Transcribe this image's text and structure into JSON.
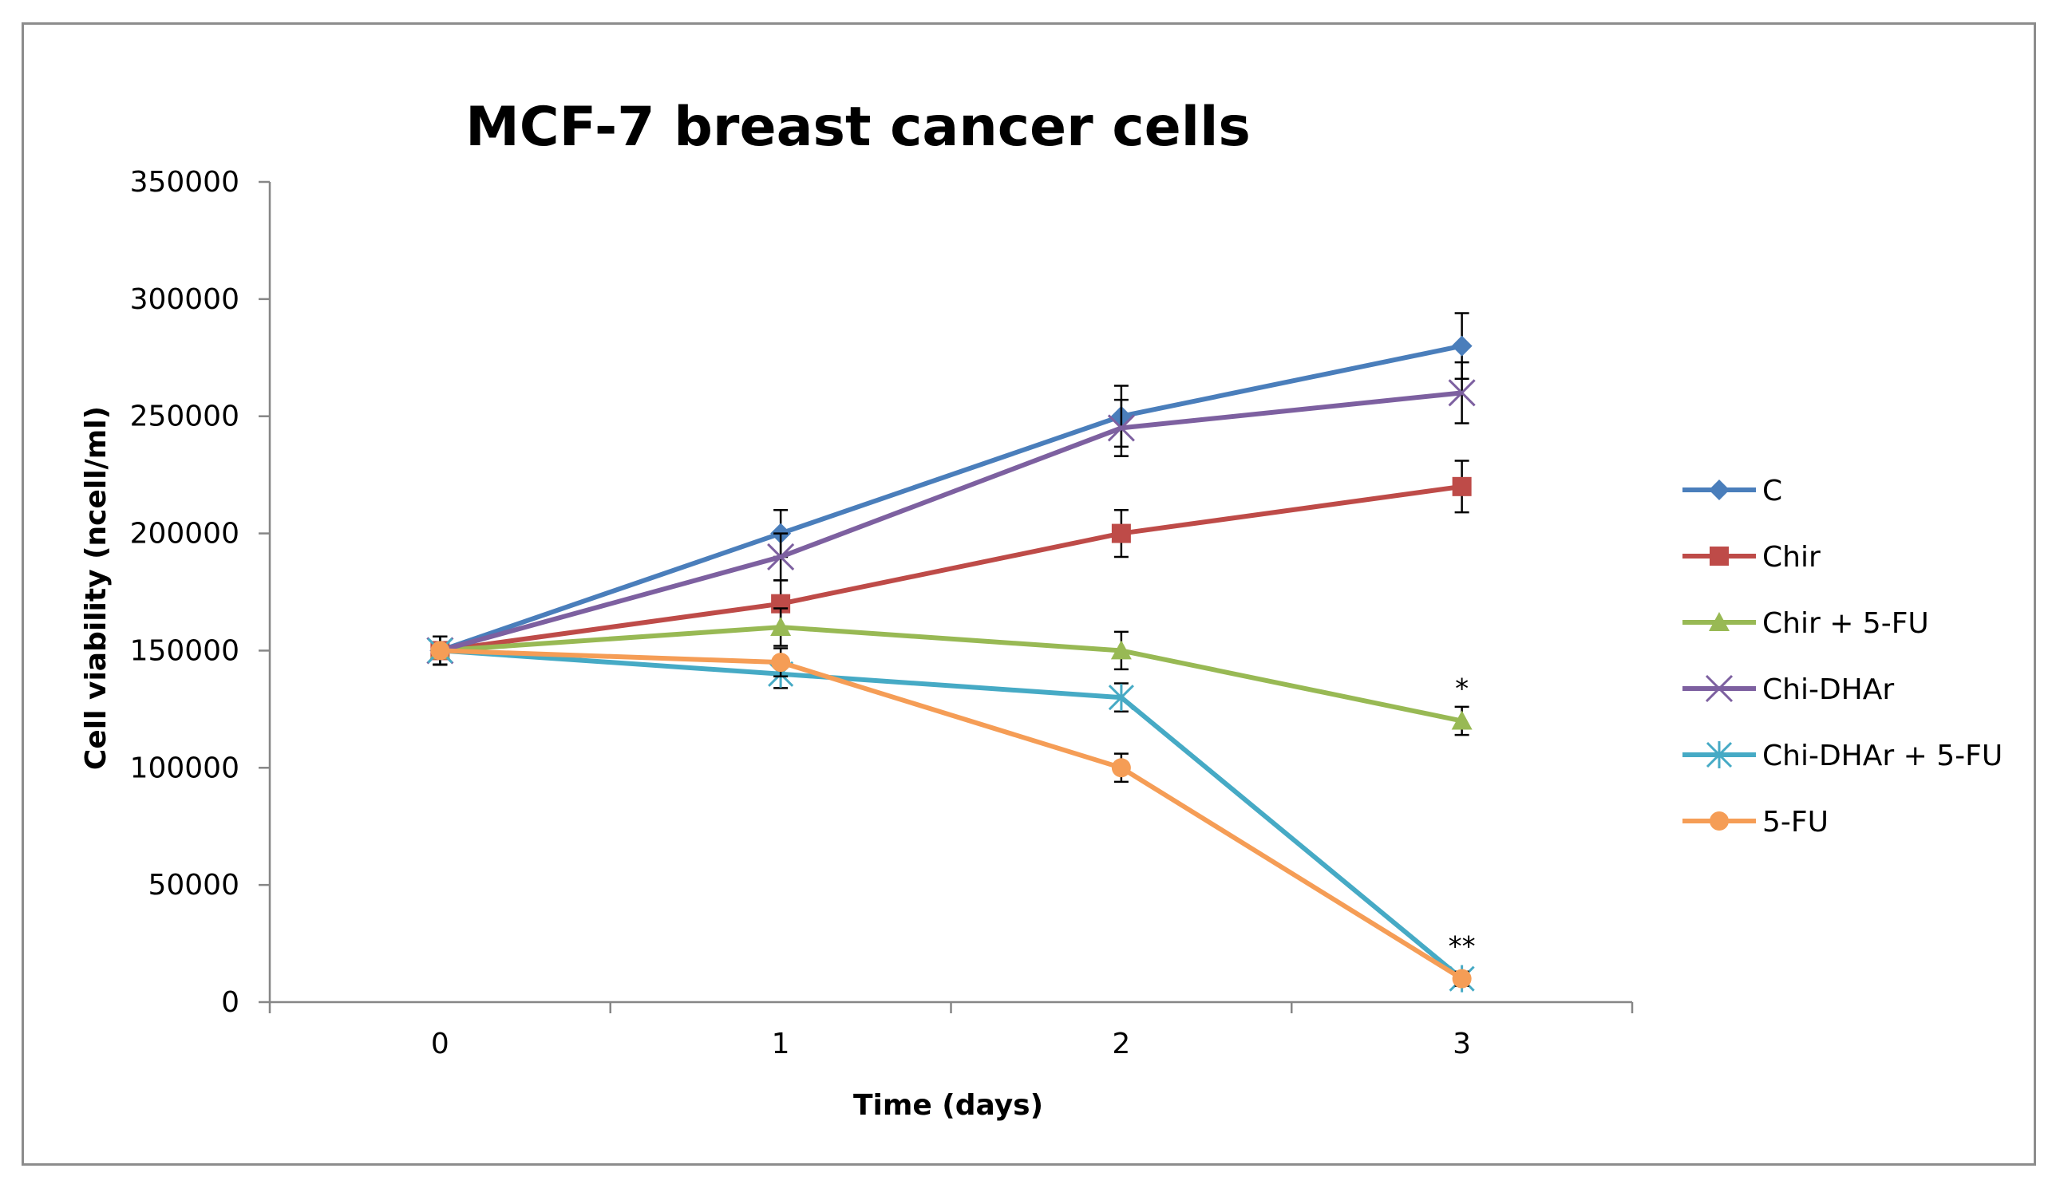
{
  "chart_data": {
    "type": "line",
    "title": "MCF-7 breast cancer cells",
    "xlabel": "Time (days)",
    "ylabel": "Cell viability  (ncell/ml)",
    "x": [
      0,
      1,
      2,
      3
    ],
    "x_tick_labels": [
      "0",
      "1",
      "2",
      "3"
    ],
    "ylim": [
      0,
      350000
    ],
    "y_ticks": [
      0,
      50000,
      100000,
      150000,
      200000,
      250000,
      300000,
      350000
    ],
    "y_tick_labels": [
      "0",
      "50000",
      "100000",
      "150000",
      "200000",
      "250000",
      "300000",
      "350000"
    ],
    "grid": false,
    "legend_position": "right",
    "series": [
      {
        "name": "C",
        "color": "#4a7ebb",
        "marker": "diamond",
        "values": [
          150000,
          200000,
          250000,
          280000
        ],
        "errors": [
          6000,
          10000,
          13000,
          14000
        ]
      },
      {
        "name": "Chir",
        "color": "#be4b48",
        "marker": "square",
        "values": [
          150000,
          170000,
          200000,
          220000
        ],
        "errors": [
          6000,
          10000,
          10000,
          11000
        ]
      },
      {
        "name": "Chir + 5-FU",
        "color": "#98b954",
        "marker": "triangle",
        "values": [
          150000,
          160000,
          150000,
          120000
        ],
        "errors": [
          6000,
          8000,
          8000,
          6000
        ]
      },
      {
        "name": "Chi-DHAr",
        "color": "#7d60a0",
        "marker": "x",
        "values": [
          150000,
          190000,
          245000,
          260000
        ],
        "errors": [
          6000,
          10000,
          12000,
          13000
        ]
      },
      {
        "name": "Chi-DHAr + 5-FU",
        "color": "#46aac5",
        "marker": "asterisk",
        "values": [
          150000,
          140000,
          130000,
          10000
        ],
        "errors": [
          6000,
          6000,
          6000,
          3000
        ]
      },
      {
        "name": "5-FU",
        "color": "#f59d56",
        "marker": "circle",
        "values": [
          150000,
          145000,
          100000,
          10000
        ],
        "errors": [
          6000,
          6000,
          6000,
          3000
        ]
      }
    ],
    "annotations": [
      {
        "text": "*",
        "x": 3,
        "y": 134000
      },
      {
        "text": "**",
        "x": 3,
        "y": 24000
      }
    ]
  }
}
